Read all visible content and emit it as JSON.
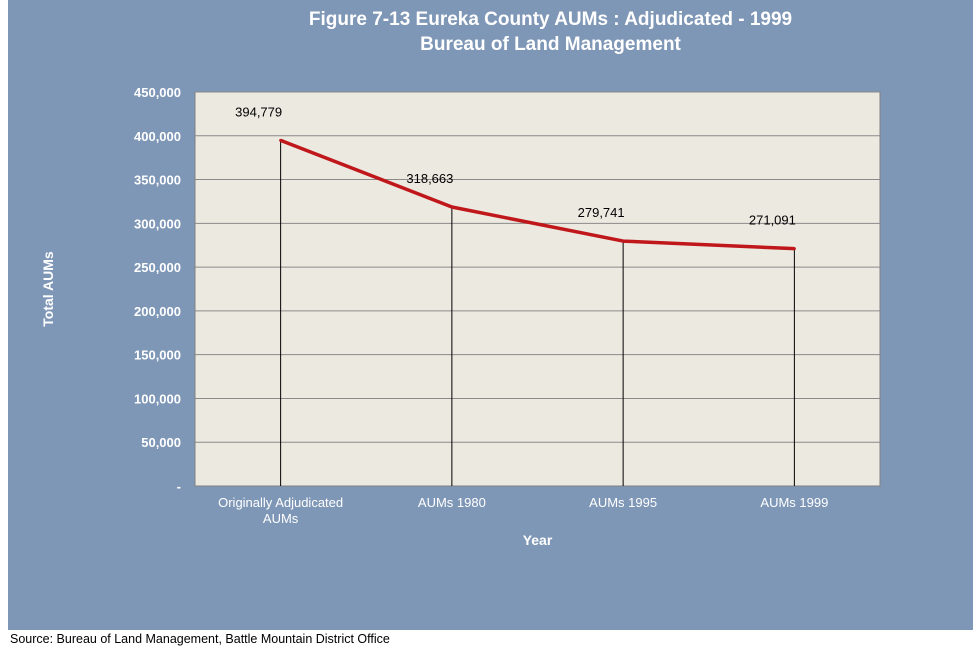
{
  "title_line1": "Figure 7-13 Eureka County AUMs :  Adjudicated - 1999",
  "title_line2": "Bureau of Land Management",
  "source": "Source: Bureau of Land Management, Battle Mountain District Office",
  "colors": {
    "panel": "#7f97b7",
    "plot_area": "#ece9e1",
    "line": "#c0171b",
    "axis_text": "#ffffff"
  },
  "chart_data": {
    "type": "line",
    "xlabel": "Year",
    "ylabel": "Total AUMs",
    "categories": [
      [
        "Originally Adjudicated",
        "AUMs"
      ],
      [
        "AUMs 1980"
      ],
      [
        "AUMs 1995"
      ],
      [
        "AUMs 1999"
      ]
    ],
    "values": [
      394779,
      318663,
      279741,
      271091
    ],
    "data_labels": [
      "394,779",
      "318,663",
      "279,741",
      "271,091"
    ],
    "ylim": [
      0,
      450000
    ],
    "yticks": [
      0,
      50000,
      100000,
      150000,
      200000,
      250000,
      300000,
      350000,
      400000,
      450000
    ],
    "ytick_labels": [
      "-",
      "50,000",
      "100,000",
      "150,000",
      "200,000",
      "250,000",
      "300,000",
      "350,000",
      "400,000",
      "450,000"
    ],
    "grid": true,
    "drop_lines": true
  }
}
